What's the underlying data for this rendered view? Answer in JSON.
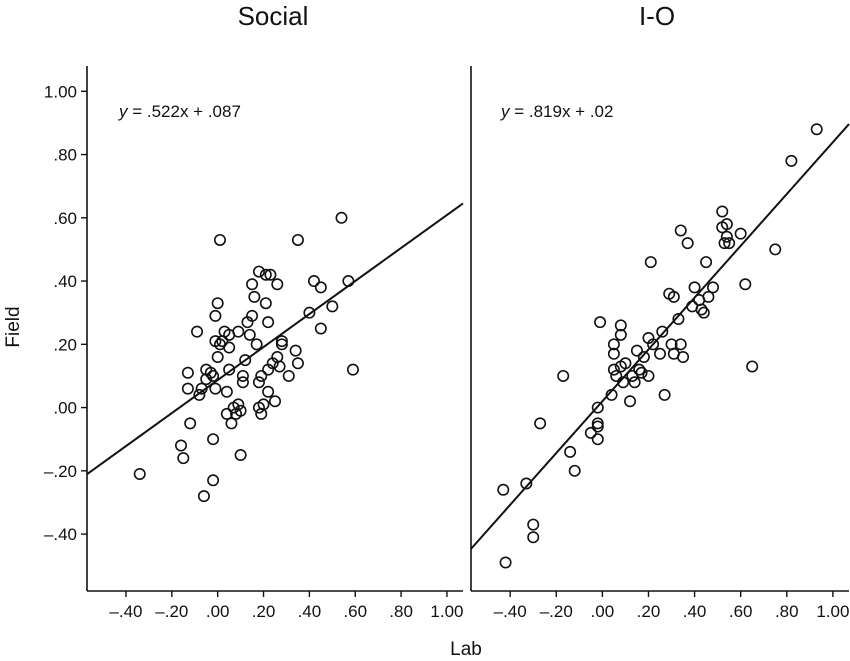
{
  "chart_data": [
    {
      "type": "scatter",
      "title": "Social",
      "equation_var": "y",
      "equation_rest": " = .522x + .087",
      "fit": {
        "slope": 0.522,
        "intercept": 0.087
      },
      "xlim": [
        -0.57,
        1.07
      ],
      "ylim": [
        -0.58,
        1.08
      ],
      "xticks": [
        -0.4,
        -0.2,
        0.0,
        0.2,
        0.4,
        0.6,
        0.8,
        1.0
      ],
      "xtick_labels": [
        "–.40",
        "–.20",
        ".00",
        ".20",
        ".40",
        ".60",
        ".80",
        "1.00"
      ],
      "yticks": [
        -0.4,
        -0.2,
        0.0,
        0.2,
        0.4,
        0.6,
        0.8,
        1.0
      ],
      "ytick_labels": [
        "–.40",
        "–.20",
        ".00",
        ".20",
        ".40",
        ".60",
        ".80",
        "1.00"
      ],
      "points": [
        [
          -0.34,
          -0.21
        ],
        [
          -0.16,
          -0.12
        ],
        [
          -0.15,
          -0.16
        ],
        [
          -0.13,
          0.06
        ],
        [
          -0.13,
          0.11
        ],
        [
          -0.12,
          -0.05
        ],
        [
          -0.09,
          0.24
        ],
        [
          -0.08,
          0.04
        ],
        [
          -0.07,
          0.06
        ],
        [
          -0.06,
          -0.28
        ],
        [
          -0.05,
          0.09
        ],
        [
          -0.05,
          0.12
        ],
        [
          -0.03,
          0.11
        ],
        [
          -0.02,
          0.1
        ],
        [
          -0.02,
          -0.23
        ],
        [
          -0.02,
          -0.1
        ],
        [
          -0.01,
          0.06
        ],
        [
          -0.01,
          0.21
        ],
        [
          -0.01,
          0.29
        ],
        [
          0.0,
          0.33
        ],
        [
          0.0,
          0.16
        ],
        [
          0.01,
          0.53
        ],
        [
          0.01,
          0.2
        ],
        [
          0.02,
          0.21
        ],
        [
          0.03,
          0.24
        ],
        [
          0.04,
          0.05
        ],
        [
          0.04,
          -0.02
        ],
        [
          0.05,
          0.23
        ],
        [
          0.05,
          0.12
        ],
        [
          0.05,
          0.19
        ],
        [
          0.06,
          -0.05
        ],
        [
          0.07,
          0.0
        ],
        [
          0.08,
          -0.02
        ],
        [
          0.09,
          0.01
        ],
        [
          0.09,
          0.24
        ],
        [
          0.1,
          -0.15
        ],
        [
          0.1,
          -0.01
        ],
        [
          0.11,
          0.08
        ],
        [
          0.11,
          0.1
        ],
        [
          0.12,
          0.15
        ],
        [
          0.13,
          0.27
        ],
        [
          0.14,
          0.23
        ],
        [
          0.15,
          0.29
        ],
        [
          0.15,
          0.39
        ],
        [
          0.16,
          0.35
        ],
        [
          0.17,
          0.2
        ],
        [
          0.18,
          0.43
        ],
        [
          0.18,
          0.08
        ],
        [
          0.18,
          0.0
        ],
        [
          0.19,
          -0.02
        ],
        [
          0.19,
          0.1
        ],
        [
          0.2,
          0.01
        ],
        [
          0.21,
          0.42
        ],
        [
          0.21,
          0.33
        ],
        [
          0.22,
          0.05
        ],
        [
          0.22,
          0.27
        ],
        [
          0.22,
          0.12
        ],
        [
          0.23,
          0.42
        ],
        [
          0.24,
          0.14
        ],
        [
          0.25,
          0.02
        ],
        [
          0.26,
          0.39
        ],
        [
          0.26,
          0.16
        ],
        [
          0.27,
          0.13
        ],
        [
          0.28,
          0.21
        ],
        [
          0.28,
          0.2
        ],
        [
          0.31,
          0.1
        ],
        [
          0.34,
          0.18
        ],
        [
          0.35,
          0.53
        ],
        [
          0.35,
          0.14
        ],
        [
          0.4,
          0.3
        ],
        [
          0.42,
          0.4
        ],
        [
          0.45,
          0.38
        ],
        [
          0.45,
          0.25
        ],
        [
          0.5,
          0.32
        ],
        [
          0.54,
          0.6
        ],
        [
          0.57,
          0.4
        ],
        [
          0.59,
          0.12
        ]
      ]
    },
    {
      "type": "scatter",
      "title": "I-O",
      "equation_var": "y",
      "equation_rest": " = .819x + .02",
      "fit": {
        "slope": 0.819,
        "intercept": 0.02
      },
      "xlim": [
        -0.57,
        1.07
      ],
      "ylim": [
        -0.58,
        1.08
      ],
      "xticks": [
        -0.4,
        -0.2,
        0.0,
        0.2,
        0.4,
        0.6,
        0.8,
        1.0
      ],
      "xtick_labels": [
        "–.40",
        "–.20",
        ".00",
        ".20",
        ".40",
        ".60",
        ".80",
        "1.00"
      ],
      "points": [
        [
          -0.43,
          -0.26
        ],
        [
          -0.42,
          -0.49
        ],
        [
          -0.33,
          -0.24
        ],
        [
          -0.3,
          -0.37
        ],
        [
          -0.3,
          -0.41
        ],
        [
          -0.27,
          -0.05
        ],
        [
          -0.17,
          0.1
        ],
        [
          -0.14,
          -0.14
        ],
        [
          -0.12,
          -0.2
        ],
        [
          -0.05,
          -0.08
        ],
        [
          -0.02,
          -0.1
        ],
        [
          -0.02,
          -0.06
        ],
        [
          -0.02,
          -0.05
        ],
        [
          -0.02,
          0.0
        ],
        [
          -0.01,
          0.27
        ],
        [
          0.04,
          0.04
        ],
        [
          0.05,
          0.12
        ],
        [
          0.05,
          0.17
        ],
        [
          0.05,
          0.2
        ],
        [
          0.06,
          0.1
        ],
        [
          0.08,
          0.13
        ],
        [
          0.08,
          0.23
        ],
        [
          0.08,
          0.26
        ],
        [
          0.09,
          0.08
        ],
        [
          0.1,
          0.14
        ],
        [
          0.12,
          0.02
        ],
        [
          0.13,
          0.1
        ],
        [
          0.14,
          0.08
        ],
        [
          0.15,
          0.18
        ],
        [
          0.16,
          0.12
        ],
        [
          0.17,
          0.11
        ],
        [
          0.18,
          0.16
        ],
        [
          0.2,
          0.1
        ],
        [
          0.2,
          0.22
        ],
        [
          0.21,
          0.46
        ],
        [
          0.22,
          0.2
        ],
        [
          0.25,
          0.17
        ],
        [
          0.26,
          0.24
        ],
        [
          0.27,
          0.04
        ],
        [
          0.29,
          0.36
        ],
        [
          0.3,
          0.2
        ],
        [
          0.31,
          0.17
        ],
        [
          0.31,
          0.35
        ],
        [
          0.33,
          0.28
        ],
        [
          0.34,
          0.2
        ],
        [
          0.34,
          0.56
        ],
        [
          0.35,
          0.16
        ],
        [
          0.37,
          0.52
        ],
        [
          0.39,
          0.32
        ],
        [
          0.4,
          0.38
        ],
        [
          0.42,
          0.34
        ],
        [
          0.43,
          0.31
        ],
        [
          0.44,
          0.3
        ],
        [
          0.45,
          0.46
        ],
        [
          0.46,
          0.35
        ],
        [
          0.48,
          0.38
        ],
        [
          0.52,
          0.57
        ],
        [
          0.52,
          0.62
        ],
        [
          0.53,
          0.52
        ],
        [
          0.54,
          0.54
        ],
        [
          0.54,
          0.58
        ],
        [
          0.55,
          0.52
        ],
        [
          0.6,
          0.55
        ],
        [
          0.62,
          0.39
        ],
        [
          0.65,
          0.13
        ],
        [
          0.75,
          0.5
        ],
        [
          0.82,
          0.78
        ],
        [
          0.93,
          0.88
        ]
      ]
    }
  ],
  "shared": {
    "xlabel": "Lab",
    "ylabel": "Field"
  }
}
